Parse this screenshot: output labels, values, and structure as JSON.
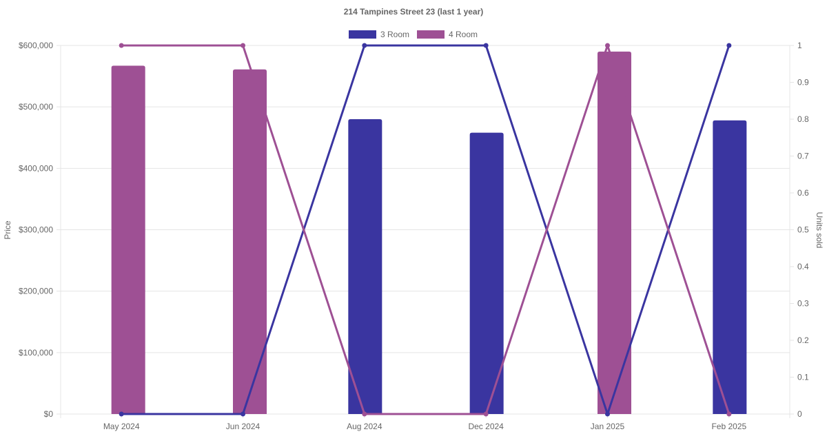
{
  "chart_data": {
    "type": "bar",
    "title": "214 Tampines Street 23 (last 1 year)",
    "categories": [
      "May 2024",
      "Jun 2024",
      "Aug 2024",
      "Dec 2024",
      "Jan 2025",
      "Feb 2025"
    ],
    "y_left": {
      "label": "Price",
      "ylim": [
        0,
        600000
      ],
      "ticks": [
        "$0",
        "$100,000",
        "$200,000",
        "$300,000",
        "$400,000",
        "$500,000",
        "$600,000"
      ]
    },
    "y_right": {
      "label": "Units sold",
      "ylim": [
        0,
        1
      ],
      "ticks": [
        "0",
        "0.1",
        "0.2",
        "0.3",
        "0.4",
        "0.5",
        "0.6",
        "0.7",
        "0.8",
        "0.9",
        "1"
      ]
    },
    "series": [
      {
        "name": "3 Room",
        "color": "#3a35a0",
        "bar_values": [
          null,
          null,
          480000,
          458000,
          null,
          478000
        ],
        "units_sold": [
          0,
          0,
          1,
          1,
          0,
          1
        ]
      },
      {
        "name": "4 Room",
        "color": "#9e5094",
        "bar_values": [
          567000,
          561000,
          null,
          null,
          590000,
          null
        ],
        "units_sold": [
          1,
          1,
          0,
          0,
          1,
          0
        ]
      }
    ],
    "legend_position": "top-center",
    "grid": true
  }
}
